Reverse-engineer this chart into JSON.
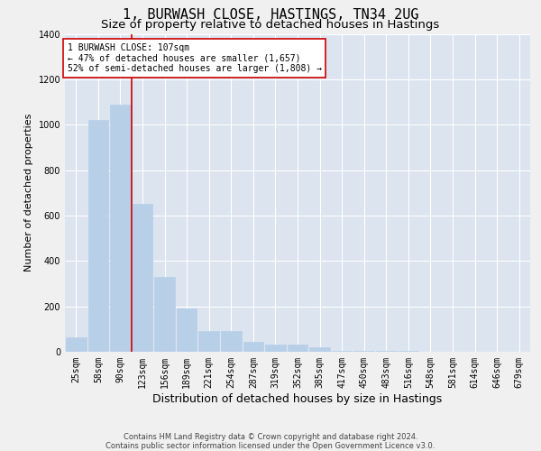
{
  "title": "1, BURWASH CLOSE, HASTINGS, TN34 2UG",
  "subtitle": "Size of property relative to detached houses in Hastings",
  "xlabel": "Distribution of detached houses by size in Hastings",
  "ylabel": "Number of detached properties",
  "bin_labels": [
    "25sqm",
    "58sqm",
    "90sqm",
    "123sqm",
    "156sqm",
    "189sqm",
    "221sqm",
    "254sqm",
    "287sqm",
    "319sqm",
    "352sqm",
    "385sqm",
    "417sqm",
    "450sqm",
    "483sqm",
    "516sqm",
    "548sqm",
    "581sqm",
    "614sqm",
    "646sqm",
    "679sqm"
  ],
  "bar_values": [
    65,
    1020,
    1090,
    650,
    330,
    190,
    90,
    90,
    45,
    30,
    30,
    20,
    5,
    5,
    2,
    2,
    1,
    1,
    0,
    0,
    0
  ],
  "bar_color": "#b8cfe8",
  "bar_edgecolor": "#b8cfe8",
  "bg_color": "#dce4f0",
  "grid_color": "#ffffff",
  "ylim": [
    0,
    1400
  ],
  "vline_color": "#cc0000",
  "annotation_text": "1 BURWASH CLOSE: 107sqm\n← 47% of detached houses are smaller (1,657)\n52% of semi-detached houses are larger (1,808) →",
  "annotation_box_color": "#cc0000",
  "footer_line1": "Contains HM Land Registry data © Crown copyright and database right 2024.",
  "footer_line2": "Contains public sector information licensed under the Open Government Licence v3.0.",
  "title_fontsize": 11,
  "subtitle_fontsize": 9.5,
  "xlabel_fontsize": 9,
  "ylabel_fontsize": 8,
  "tick_fontsize": 7,
  "annotation_fontsize": 7,
  "footer_fontsize": 6
}
